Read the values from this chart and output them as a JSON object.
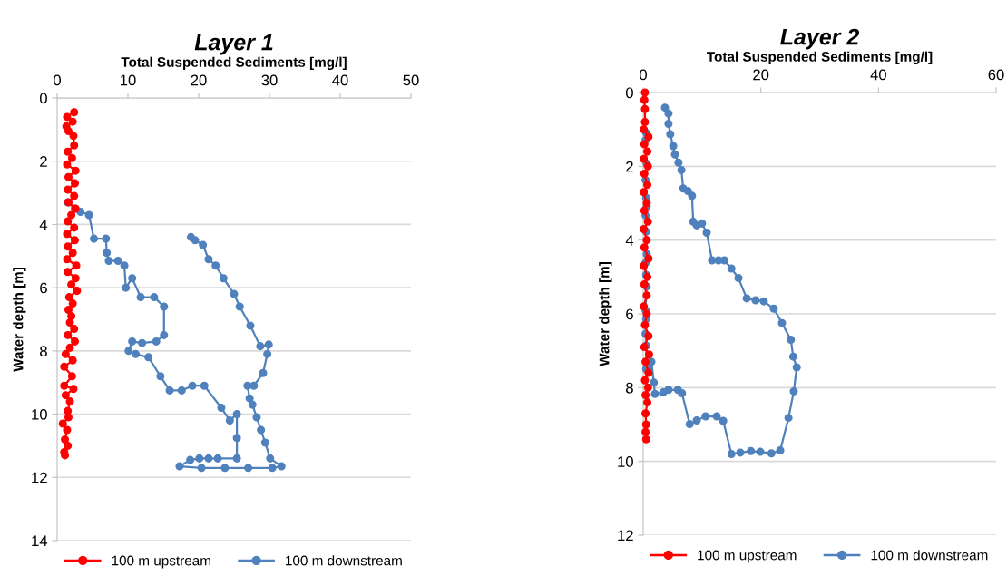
{
  "chart_data": [
    {
      "type": "line",
      "title": "Layer 1",
      "xlabel": "Total Suspended Sediments [mg/l]",
      "ylabel": "Water depth [m]",
      "xlim": [
        0,
        50
      ],
      "xticks": [
        0,
        10,
        20,
        30,
        40,
        50
      ],
      "ylim": [
        14,
        0
      ],
      "yticks": [
        0,
        2,
        4,
        6,
        8,
        10,
        12,
        14
      ],
      "grid": "y",
      "legend": "bottom",
      "marker": "circle",
      "line_style": "solid",
      "series": [
        {
          "name": "100 m upstream",
          "color": "#ff0000",
          "x": [
            2.4,
            1.4,
            2.2,
            1.3,
            1.6,
            2.3,
            2.4,
            1.5,
            2.1,
            1.4,
            2.6,
            1.6,
            2.5,
            1.5,
            2.4,
            1.6,
            2.6,
            2.0,
            1.5,
            2.4,
            1.4,
            2.5,
            1.5,
            2.2,
            1.4,
            2.7,
            1.5,
            2.6,
            2.0,
            2.8,
            1.7,
            2.2,
            1.6,
            2.0,
            1.8,
            2.4,
            1.5,
            2.5,
            1.8,
            1.2,
            2.2,
            1.0,
            2.1,
            1.0,
            2.3,
            1.2,
            1.8,
            1.5,
            1.6,
            0.8,
            1.4,
            1.1,
            1.5,
            1.0,
            1.1
          ],
          "values": [
            0.45,
            0.6,
            0.75,
            0.9,
            1.05,
            1.2,
            1.5,
            1.7,
            1.9,
            2.1,
            2.3,
            2.5,
            2.7,
            2.9,
            3.1,
            3.3,
            3.5,
            3.7,
            3.9,
            4.1,
            4.3,
            4.5,
            4.7,
            4.9,
            5.1,
            5.3,
            5.5,
            5.7,
            5.9,
            6.1,
            6.3,
            6.5,
            6.7,
            6.9,
            7.1,
            7.3,
            7.5,
            7.7,
            7.9,
            8.1,
            8.3,
            8.5,
            8.8,
            9.1,
            9.2,
            9.4,
            9.6,
            9.9,
            10.1,
            10.3,
            10.5,
            10.8,
            11.0,
            11.2,
            11.3
          ]
        },
        {
          "name": "100 m downstream",
          "color": "#4f81bd",
          "x": [
            1.5,
            2.5,
            3.3,
            4.5,
            5.2,
            6.9,
            7.0,
            7.3,
            8.6,
            9.5,
            9.7,
            10.6,
            11.8,
            13.7,
            15.1,
            15.1,
            14.0,
            12.0,
            10.6,
            10.1,
            11.1,
            12.9,
            14.6,
            15.9,
            17.6,
            19.1,
            20.8,
            23.2,
            24.4,
            25.4,
            25.4,
            25.4,
            22.7,
            21.4,
            20.1,
            18.8,
            17.3,
            20.4,
            23.7,
            27.0,
            30.4,
            31.7,
            30.1,
            29.4,
            28.8,
            28.2,
            27.6,
            27.2,
            26.9,
            27.8,
            29.1,
            29.7,
            29.9,
            28.7,
            27.3,
            25.8,
            25.0,
            23.5,
            22.4,
            21.4,
            20.6,
            19.5,
            18.9
          ],
          "values": [
            3.3,
            3.5,
            3.6,
            3.7,
            4.45,
            4.45,
            4.9,
            5.15,
            5.15,
            5.3,
            6.0,
            5.7,
            6.3,
            6.3,
            6.6,
            7.5,
            7.7,
            7.75,
            7.7,
            8.0,
            8.1,
            8.2,
            8.8,
            9.25,
            9.25,
            9.1,
            9.1,
            9.8,
            10.2,
            10.0,
            10.75,
            11.4,
            11.4,
            11.4,
            11.4,
            11.45,
            11.65,
            11.7,
            11.7,
            11.7,
            11.7,
            11.65,
            11.4,
            10.9,
            10.5,
            10.1,
            9.7,
            9.5,
            9.1,
            9.1,
            8.7,
            8.1,
            7.8,
            7.85,
            7.2,
            6.6,
            6.2,
            5.7,
            5.3,
            5.1,
            4.65,
            4.5,
            4.4
          ]
        }
      ]
    },
    {
      "type": "line",
      "title": "Layer 2",
      "xlabel": "Total Suspended Sediments [mg/l]",
      "ylabel": "Water depth [m]",
      "xlim": [
        0,
        60
      ],
      "xticks": [
        0,
        20,
        40,
        60
      ],
      "ylim": [
        12,
        0
      ],
      "yticks": [
        0,
        2,
        4,
        6,
        8,
        10,
        12
      ],
      "grid": "y",
      "legend": "bottom",
      "marker": "circle",
      "line_style": "solid",
      "series": [
        {
          "name": "100 m upstream",
          "color": "#ff0000",
          "x": [
            0.3,
            0.2,
            0.3,
            0.3,
            0.1,
            0.9,
            0.2,
            0.7,
            0.1,
            0.8,
            0.2,
            0.7,
            0.1,
            0.6,
            0.2,
            0.8,
            0.1,
            0.6,
            0.2,
            0.9,
            0.1,
            0.7,
            0.2,
            0.6,
            0.1,
            0.6,
            0.3,
            0.9,
            0.2,
            1.0,
            0.4,
            0.9,
            0.3,
            0.8,
            0.4,
            0.7,
            0.4,
            0.5,
            0.4,
            0.5
          ],
          "values": [
            0.0,
            0.2,
            0.45,
            0.8,
            1.0,
            1.2,
            1.4,
            1.6,
            1.8,
            2.0,
            2.2,
            2.5,
            2.7,
            3.0,
            3.2,
            3.5,
            3.7,
            4.0,
            4.2,
            4.5,
            4.7,
            5.0,
            5.2,
            5.5,
            5.8,
            6.0,
            6.3,
            6.6,
            6.9,
            7.1,
            7.3,
            7.6,
            7.8,
            8.0,
            8.2,
            8.4,
            8.7,
            9.0,
            9.2,
            9.4
          ]
        },
        {
          "name": "100 m downstream",
          "color": "#4f81bd",
          "x": [
            0.5,
            0.4,
            0.6,
            0.4,
            0.5,
            0.6,
            0.4,
            0.5,
            0.6,
            0.4,
            0.5,
            0.6,
            0.4,
            0.5,
            0.4,
            0.5,
            0.5,
            0.9,
            1.4,
            1.8,
            2.0,
            3.4,
            4.3,
            5.9,
            6.6,
            7.9,
            9.1,
            10.6,
            12.5,
            13.6,
            15.0,
            16.5,
            18.3,
            19.9,
            21.8,
            23.3,
            24.7,
            25.6,
            26.1,
            25.5,
            25.1,
            23.6,
            22.2,
            20.5,
            19.1,
            17.6,
            16.2,
            15.0,
            13.8,
            12.8,
            11.7,
            10.8,
            10.0,
            9.1,
            8.5,
            8.3,
            7.6,
            6.8,
            6.5,
            6.0,
            5.4,
            5.1,
            4.6,
            4.3,
            4.3,
            3.7
          ],
          "values": [
            1.09,
            1.29,
            1.93,
            2.37,
            2.85,
            3.09,
            3.33,
            3.77,
            4.38,
            4.62,
            4.94,
            5.26,
            5.9,
            6.14,
            6.54,
            6.86,
            7.5,
            7.45,
            7.3,
            7.86,
            8.17,
            8.13,
            8.06,
            8.06,
            8.15,
            8.99,
            8.89,
            8.78,
            8.78,
            8.9,
            9.8,
            9.76,
            9.72,
            9.74,
            9.78,
            9.7,
            8.82,
            8.1,
            7.45,
            7.16,
            6.7,
            6.25,
            5.86,
            5.66,
            5.63,
            5.58,
            5.03,
            4.77,
            4.55,
            4.55,
            4.55,
            3.8,
            3.55,
            3.6,
            3.5,
            2.8,
            2.67,
            2.6,
            2.1,
            1.9,
            1.68,
            1.45,
            1.13,
            0.85,
            0.57,
            0.41
          ]
        }
      ]
    }
  ]
}
